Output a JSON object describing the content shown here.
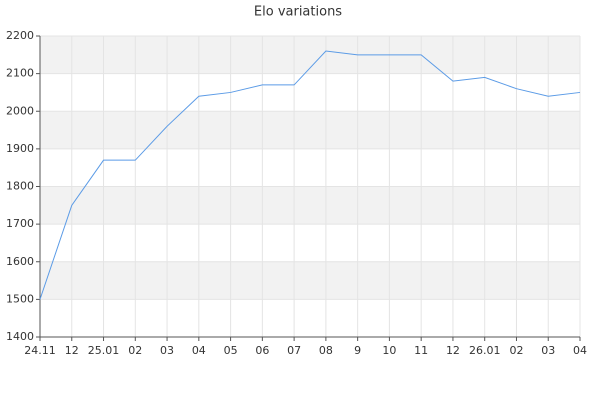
{
  "chart_data": {
    "type": "line",
    "title": "Elo variations",
    "categories": [
      "24.11",
      "12",
      "25.01",
      "02",
      "03",
      "04",
      "05",
      "06",
      "07",
      "08",
      "9",
      "10",
      "11",
      "12",
      "26.01",
      "02",
      "03",
      "04"
    ],
    "values": [
      1500,
      1750,
      1870,
      1870,
      1960,
      2040,
      2050,
      2070,
      2070,
      2160,
      2150,
      2150,
      2150,
      2080,
      2090,
      2060,
      2040,
      2050
    ],
    "color": "#5b9be6",
    "ylim": [
      1400,
      2200
    ],
    "yticks": [
      1400,
      1500,
      1600,
      1700,
      1800,
      1900,
      2000,
      2100,
      2200
    ],
    "grid": true
  }
}
